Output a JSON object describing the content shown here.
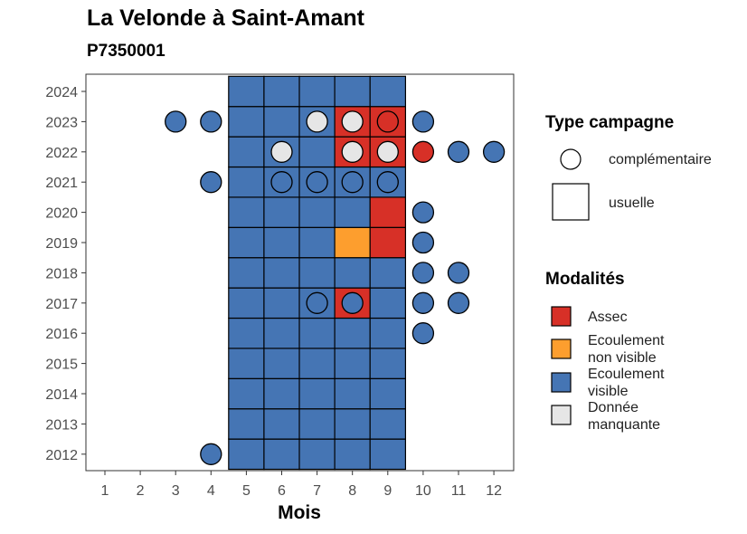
{
  "chart_data": {
    "type": "heatmap",
    "title": "La Velonde à Saint-Amant",
    "subtitle": "P7350001",
    "xlabel": "Mois",
    "ylabel": "",
    "x_ticks": [
      1,
      2,
      3,
      4,
      5,
      6,
      7,
      8,
      9,
      10,
      11,
      12
    ],
    "y_ticks": [
      2012,
      2013,
      2014,
      2015,
      2016,
      2017,
      2018,
      2019,
      2020,
      2021,
      2022,
      2023,
      2024
    ],
    "colors": {
      "Assec": "#d73027",
      "Ecoulement non visible": "#fd9e2e",
      "Ecoulement visible": "#4575b4",
      "Donnée manquante": "#e6e6e6"
    },
    "legend_type": {
      "title": "Type campagne",
      "items": [
        {
          "label": "complémentaire",
          "shape": "circle"
        },
        {
          "label": "usuelle",
          "shape": "square"
        }
      ]
    },
    "legend_modalites": {
      "title": "Modalités",
      "items": [
        {
          "label": "Assec",
          "key": "Assec"
        },
        {
          "label": "Ecoulement\nnon visible",
          "key": "Ecoulement non visible"
        },
        {
          "label": "Ecoulement\nvisible",
          "key": "Ecoulement visible"
        },
        {
          "label": "Donnée\nmanquante",
          "key": "Donnée manquante"
        }
      ]
    },
    "usuelle": [
      {
        "year": 2012,
        "month": 5,
        "m": "Ecoulement visible"
      },
      {
        "year": 2012,
        "month": 6,
        "m": "Ecoulement visible"
      },
      {
        "year": 2012,
        "month": 7,
        "m": "Ecoulement visible"
      },
      {
        "year": 2012,
        "month": 8,
        "m": "Ecoulement visible"
      },
      {
        "year": 2012,
        "month": 9,
        "m": "Ecoulement visible"
      },
      {
        "year": 2013,
        "month": 5,
        "m": "Ecoulement visible"
      },
      {
        "year": 2013,
        "month": 6,
        "m": "Ecoulement visible"
      },
      {
        "year": 2013,
        "month": 7,
        "m": "Ecoulement visible"
      },
      {
        "year": 2013,
        "month": 8,
        "m": "Ecoulement visible"
      },
      {
        "year": 2013,
        "month": 9,
        "m": "Ecoulement visible"
      },
      {
        "year": 2014,
        "month": 5,
        "m": "Ecoulement visible"
      },
      {
        "year": 2014,
        "month": 6,
        "m": "Ecoulement visible"
      },
      {
        "year": 2014,
        "month": 7,
        "m": "Ecoulement visible"
      },
      {
        "year": 2014,
        "month": 8,
        "m": "Ecoulement visible"
      },
      {
        "year": 2014,
        "month": 9,
        "m": "Ecoulement visible"
      },
      {
        "year": 2015,
        "month": 5,
        "m": "Ecoulement visible"
      },
      {
        "year": 2015,
        "month": 6,
        "m": "Ecoulement visible"
      },
      {
        "year": 2015,
        "month": 7,
        "m": "Ecoulement visible"
      },
      {
        "year": 2015,
        "month": 8,
        "m": "Ecoulement visible"
      },
      {
        "year": 2015,
        "month": 9,
        "m": "Ecoulement visible"
      },
      {
        "year": 2016,
        "month": 5,
        "m": "Ecoulement visible"
      },
      {
        "year": 2016,
        "month": 6,
        "m": "Ecoulement visible"
      },
      {
        "year": 2016,
        "month": 7,
        "m": "Ecoulement visible"
      },
      {
        "year": 2016,
        "month": 8,
        "m": "Ecoulement visible"
      },
      {
        "year": 2016,
        "month": 9,
        "m": "Ecoulement visible"
      },
      {
        "year": 2017,
        "month": 5,
        "m": "Ecoulement visible"
      },
      {
        "year": 2017,
        "month": 6,
        "m": "Ecoulement visible"
      },
      {
        "year": 2017,
        "month": 7,
        "m": "Ecoulement visible"
      },
      {
        "year": 2017,
        "month": 8,
        "m": "Assec"
      },
      {
        "year": 2017,
        "month": 9,
        "m": "Ecoulement visible"
      },
      {
        "year": 2018,
        "month": 5,
        "m": "Ecoulement visible"
      },
      {
        "year": 2018,
        "month": 6,
        "m": "Ecoulement visible"
      },
      {
        "year": 2018,
        "month": 7,
        "m": "Ecoulement visible"
      },
      {
        "year": 2018,
        "month": 8,
        "m": "Ecoulement visible"
      },
      {
        "year": 2018,
        "month": 9,
        "m": "Ecoulement visible"
      },
      {
        "year": 2019,
        "month": 5,
        "m": "Ecoulement visible"
      },
      {
        "year": 2019,
        "month": 6,
        "m": "Ecoulement visible"
      },
      {
        "year": 2019,
        "month": 7,
        "m": "Ecoulement visible"
      },
      {
        "year": 2019,
        "month": 8,
        "m": "Ecoulement non visible"
      },
      {
        "year": 2019,
        "month": 9,
        "m": "Assec"
      },
      {
        "year": 2020,
        "month": 5,
        "m": "Ecoulement visible"
      },
      {
        "year": 2020,
        "month": 6,
        "m": "Ecoulement visible"
      },
      {
        "year": 2020,
        "month": 7,
        "m": "Ecoulement visible"
      },
      {
        "year": 2020,
        "month": 8,
        "m": "Ecoulement visible"
      },
      {
        "year": 2020,
        "month": 9,
        "m": "Assec"
      },
      {
        "year": 2021,
        "month": 5,
        "m": "Ecoulement visible"
      },
      {
        "year": 2021,
        "month": 6,
        "m": "Ecoulement visible"
      },
      {
        "year": 2021,
        "month": 7,
        "m": "Ecoulement visible"
      },
      {
        "year": 2021,
        "month": 8,
        "m": "Ecoulement visible"
      },
      {
        "year": 2021,
        "month": 9,
        "m": "Ecoulement visible"
      },
      {
        "year": 2022,
        "month": 5,
        "m": "Ecoulement visible"
      },
      {
        "year": 2022,
        "month": 6,
        "m": "Ecoulement visible"
      },
      {
        "year": 2022,
        "month": 7,
        "m": "Ecoulement visible"
      },
      {
        "year": 2022,
        "month": 8,
        "m": "Assec"
      },
      {
        "year": 2022,
        "month": 9,
        "m": "Assec"
      },
      {
        "year": 2023,
        "month": 5,
        "m": "Ecoulement visible"
      },
      {
        "year": 2023,
        "month": 6,
        "m": "Ecoulement visible"
      },
      {
        "year": 2023,
        "month": 7,
        "m": "Ecoulement visible"
      },
      {
        "year": 2023,
        "month": 8,
        "m": "Assec"
      },
      {
        "year": 2023,
        "month": 9,
        "m": "Assec"
      },
      {
        "year": 2024,
        "month": 5,
        "m": "Ecoulement visible"
      },
      {
        "year": 2024,
        "month": 6,
        "m": "Ecoulement visible"
      },
      {
        "year": 2024,
        "month": 7,
        "m": "Ecoulement visible"
      },
      {
        "year": 2024,
        "month": 8,
        "m": "Ecoulement visible"
      },
      {
        "year": 2024,
        "month": 9,
        "m": "Ecoulement visible"
      }
    ],
    "complementaire": [
      {
        "year": 2012,
        "month": 4,
        "m": "Ecoulement visible"
      },
      {
        "year": 2016,
        "month": 10,
        "m": "Ecoulement visible"
      },
      {
        "year": 2017,
        "month": 7,
        "m": "Ecoulement visible"
      },
      {
        "year": 2017,
        "month": 8,
        "m": "Ecoulement visible"
      },
      {
        "year": 2017,
        "month": 10,
        "m": "Ecoulement visible"
      },
      {
        "year": 2017,
        "month": 11,
        "m": "Ecoulement visible"
      },
      {
        "year": 2018,
        "month": 10,
        "m": "Ecoulement visible"
      },
      {
        "year": 2018,
        "month": 11,
        "m": "Ecoulement visible"
      },
      {
        "year": 2019,
        "month": 10,
        "m": "Ecoulement visible"
      },
      {
        "year": 2020,
        "month": 10,
        "m": "Ecoulement visible"
      },
      {
        "year": 2021,
        "month": 4,
        "m": "Ecoulement visible"
      },
      {
        "year": 2021,
        "month": 6,
        "m": "Ecoulement visible"
      },
      {
        "year": 2021,
        "month": 7,
        "m": "Ecoulement visible"
      },
      {
        "year": 2021,
        "month": 8,
        "m": "Ecoulement visible"
      },
      {
        "year": 2021,
        "month": 9,
        "m": "Ecoulement visible"
      },
      {
        "year": 2022,
        "month": 6,
        "m": "Donnée manquante"
      },
      {
        "year": 2022,
        "month": 8,
        "m": "Donnée manquante"
      },
      {
        "year": 2022,
        "month": 9,
        "m": "Donnée manquante"
      },
      {
        "year": 2022,
        "month": 10,
        "m": "Assec"
      },
      {
        "year": 2022,
        "month": 11,
        "m": "Ecoulement visible"
      },
      {
        "year": 2022,
        "month": 12,
        "m": "Ecoulement visible"
      },
      {
        "year": 2023,
        "month": 3,
        "m": "Ecoulement visible"
      },
      {
        "year": 2023,
        "month": 4,
        "m": "Ecoulement visible"
      },
      {
        "year": 2023,
        "month": 7,
        "m": "Donnée manquante"
      },
      {
        "year": 2023,
        "month": 8,
        "m": "Donnée manquante"
      },
      {
        "year": 2023,
        "month": 9,
        "m": "Assec"
      },
      {
        "year": 2023,
        "month": 10,
        "m": "Ecoulement visible"
      }
    ]
  }
}
